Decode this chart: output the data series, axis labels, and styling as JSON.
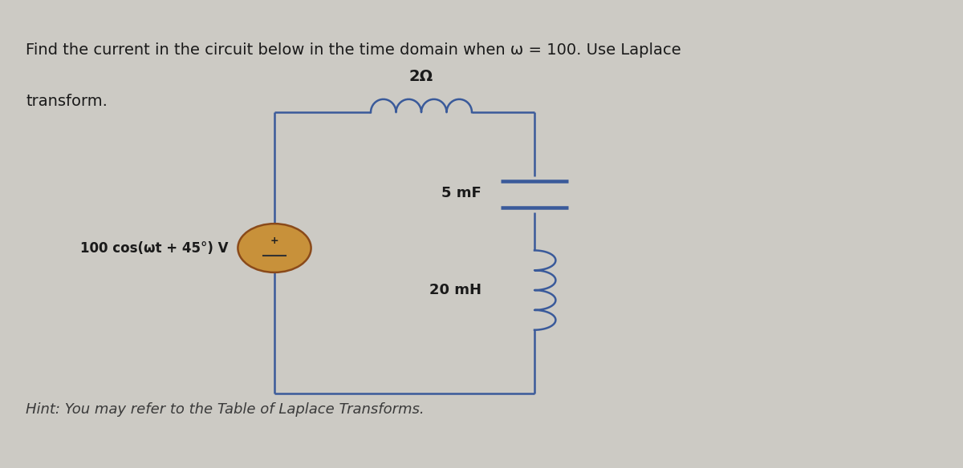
{
  "background_color": "#cccac4",
  "title_line1": "Find the current in the circuit below in the time domain when ω = 100. Use Laplace",
  "title_line2": "transform.",
  "hint": "Hint: You may refer to the Table of Laplace Transforms.",
  "source_label": "100 cos(ωt + 45°) V",
  "resistor_label": "2Ω",
  "capacitor_label": "5 mF",
  "inductor_label": "20 mH",
  "text_color": "#1a1a1a",
  "circuit_color": "#3a5a9a",
  "source_color_fill": "#c8913a",
  "source_color_edge": "#8a4a1a",
  "wire_linewidth": 1.8,
  "hint_color": "#3a3a3a"
}
